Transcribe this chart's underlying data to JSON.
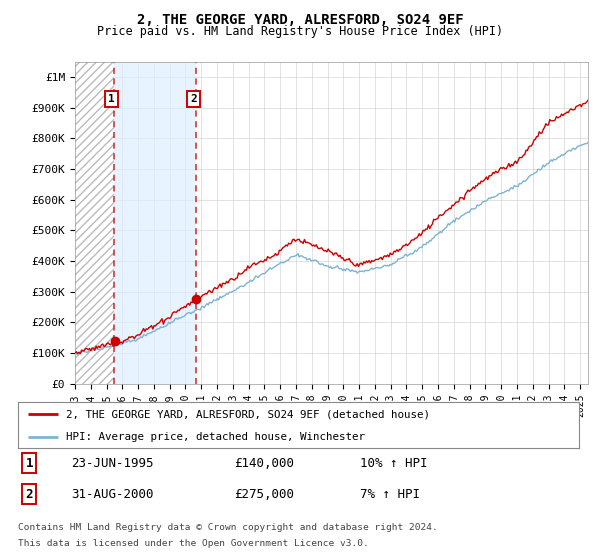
{
  "title": "2, THE GEORGE YARD, ALRESFORD, SO24 9EF",
  "subtitle": "Price paid vs. HM Land Registry's House Price Index (HPI)",
  "sale1_date": "23-JUN-1995",
  "sale1_price": 140000,
  "sale1_hpi_pct": "10%",
  "sale2_date": "31-AUG-2000",
  "sale2_price": 275000,
  "sale2_hpi_pct": "7%",
  "sale1_year": 1995.47,
  "sale2_year": 2000.66,
  "legend_line1": "2, THE GEORGE YARD, ALRESFORD, SO24 9EF (detached house)",
  "legend_line2": "HPI: Average price, detached house, Winchester",
  "footer1": "Contains HM Land Registry data © Crown copyright and database right 2024.",
  "footer2": "This data is licensed under the Open Government Licence v3.0.",
  "ylabel_ticks": [
    "£0",
    "£100K",
    "£200K",
    "£300K",
    "£400K",
    "£500K",
    "£600K",
    "£700K",
    "£800K",
    "£900K",
    "£1M"
  ],
  "ytick_values": [
    0,
    100000,
    200000,
    300000,
    400000,
    500000,
    600000,
    700000,
    800000,
    900000,
    1000000
  ],
  "xlim_start": 1993,
  "xlim_end": 2025.5,
  "ylim_top": 1050000,
  "red_color": "#cc0000",
  "blue_color": "#7fb3d3",
  "shade_color": "#ddeeff",
  "background_color": "#ffffff",
  "grid_color": "#cccccc"
}
